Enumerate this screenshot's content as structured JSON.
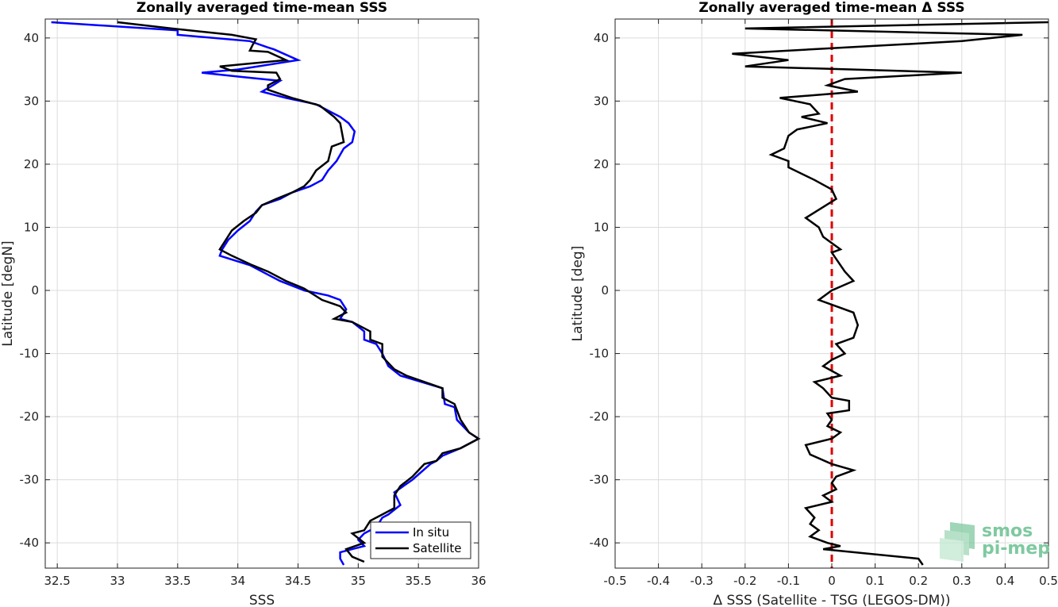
{
  "chart_data": [
    {
      "type": "line",
      "title": "Zonally averaged time-mean SSS",
      "xlabel": "SSS",
      "ylabel": "Latitude [degN]",
      "xlim": [
        32.4,
        36
      ],
      "ylim": [
        -44,
        43
      ],
      "xticks": [
        "32.5",
        "33",
        "33.5",
        "34",
        "34.5",
        "35",
        "35.5",
        "36"
      ],
      "yticks": [
        "40",
        "30",
        "20",
        "10",
        "0",
        "-10",
        "-20",
        "-30",
        "-40"
      ],
      "grid": true,
      "legend": {
        "placement": "bottom-right",
        "entries": [
          "In situ",
          "Satellite"
        ]
      },
      "series": [
        {
          "name": "In situ",
          "color": "#0000ff",
          "points": [
            [
              32.45,
              42.5
            ],
            [
              33.5,
              41.2
            ],
            [
              33.5,
              40.5
            ],
            [
              34.1,
              39.5
            ],
            [
              34.25,
              38.5
            ],
            [
              34.3,
              38.2
            ],
            [
              34.5,
              36.5
            ],
            [
              34.0,
              35.0
            ],
            [
              33.7,
              34.5
            ],
            [
              34.05,
              33.8
            ],
            [
              34.35,
              33.2
            ],
            [
              34.3,
              32.6
            ],
            [
              34.2,
              31.5
            ],
            [
              34.4,
              30.5
            ],
            [
              34.65,
              29.5
            ],
            [
              34.85,
              27.5
            ],
            [
              34.92,
              26.5
            ],
            [
              34.97,
              25.2
            ],
            [
              34.95,
              23.5
            ],
            [
              34.88,
              22.5
            ],
            [
              34.82,
              20.5
            ],
            [
              34.75,
              19.0
            ],
            [
              34.7,
              17.5
            ],
            [
              34.6,
              16.5
            ],
            [
              34.45,
              15.5
            ],
            [
              34.35,
              14.5
            ],
            [
              34.2,
              13.5
            ],
            [
              34.15,
              12.5
            ],
            [
              34.1,
              11.0
            ],
            [
              34.0,
              9.5
            ],
            [
              33.92,
              8.0
            ],
            [
              33.87,
              6.5
            ],
            [
              33.85,
              5.5
            ],
            [
              34.1,
              4.0
            ],
            [
              34.2,
              3.0
            ],
            [
              34.35,
              1.5
            ],
            [
              34.55,
              0.0
            ],
            [
              34.75,
              -0.8
            ],
            [
              34.85,
              -1.5
            ],
            [
              34.9,
              -3.0
            ],
            [
              34.85,
              -4.5
            ],
            [
              34.95,
              -5.0
            ],
            [
              35.05,
              -6.5
            ],
            [
              35.05,
              -7.8
            ],
            [
              35.15,
              -8.5
            ],
            [
              35.2,
              -10.0
            ],
            [
              35.25,
              -12.0
            ],
            [
              35.35,
              -13.5
            ],
            [
              35.7,
              -15.5
            ],
            [
              35.72,
              -18.0
            ],
            [
              35.8,
              -18.5
            ],
            [
              35.82,
              -20.5
            ],
            [
              35.92,
              -22.5
            ],
            [
              36.0,
              -23.5
            ],
            [
              35.85,
              -25.0
            ],
            [
              35.7,
              -26.2
            ],
            [
              35.65,
              -27.0
            ],
            [
              35.6,
              -27.5
            ],
            [
              35.45,
              -30.0
            ],
            [
              35.3,
              -32.0
            ],
            [
              35.35,
              -34.0
            ],
            [
              35.25,
              -35.5
            ],
            [
              35.2,
              -36.0
            ],
            [
              35.15,
              -37.5
            ],
            [
              35.05,
              -38.5
            ],
            [
              35.0,
              -39.5
            ],
            [
              35.05,
              -40.5
            ],
            [
              34.95,
              -41.0
            ],
            [
              34.85,
              -41.5
            ],
            [
              34.85,
              -42.5
            ],
            [
              34.88,
              -43.5
            ]
          ]
        },
        {
          "name": "Satellite",
          "color": "#000000",
          "points": [
            [
              33.0,
              42.5
            ],
            [
              33.45,
              41.5
            ],
            [
              33.95,
              40.5
            ],
            [
              34.15,
              39.8
            ],
            [
              34.12,
              38.8
            ],
            [
              34.1,
              38.0
            ],
            [
              34.25,
              37.8
            ],
            [
              34.4,
              36.5
            ],
            [
              33.85,
              35.5
            ],
            [
              33.95,
              34.8
            ],
            [
              34.32,
              34.5
            ],
            [
              34.35,
              33.5
            ],
            [
              34.25,
              32.5
            ],
            [
              34.25,
              31.8
            ],
            [
              34.45,
              30.5
            ],
            [
              34.68,
              29.3
            ],
            [
              34.8,
              27.5
            ],
            [
              34.85,
              26.5
            ],
            [
              34.88,
              23.5
            ],
            [
              34.78,
              22.8
            ],
            [
              34.75,
              20.5
            ],
            [
              34.65,
              19.0
            ],
            [
              34.6,
              17.5
            ],
            [
              34.55,
              16.5
            ],
            [
              34.45,
              15.5
            ],
            [
              34.32,
              14.5
            ],
            [
              34.2,
              13.5
            ],
            [
              34.15,
              12.3
            ],
            [
              34.05,
              11.0
            ],
            [
              33.95,
              9.5
            ],
            [
              33.9,
              8.0
            ],
            [
              33.85,
              6.5
            ],
            [
              33.95,
              5.5
            ],
            [
              34.12,
              4.0
            ],
            [
              34.25,
              3.0
            ],
            [
              34.4,
              1.5
            ],
            [
              34.55,
              0.3
            ],
            [
              34.7,
              -1.5
            ],
            [
              34.85,
              -2.5
            ],
            [
              34.9,
              -3.5
            ],
            [
              34.8,
              -4.5
            ],
            [
              34.95,
              -5.0
            ],
            [
              35.1,
              -6.5
            ],
            [
              35.1,
              -7.8
            ],
            [
              35.2,
              -8.5
            ],
            [
              35.2,
              -10.5
            ],
            [
              35.3,
              -12.5
            ],
            [
              35.4,
              -13.5
            ],
            [
              35.7,
              -15.5
            ],
            [
              35.7,
              -17.0
            ],
            [
              35.8,
              -18.0
            ],
            [
              35.85,
              -20.5
            ],
            [
              35.92,
              -22.5
            ],
            [
              36.0,
              -23.5
            ],
            [
              35.85,
              -25.0
            ],
            [
              35.7,
              -25.8
            ],
            [
              35.65,
              -27.0
            ],
            [
              35.55,
              -27.5
            ],
            [
              35.45,
              -29.5
            ],
            [
              35.35,
              -31.0
            ],
            [
              35.3,
              -32.5
            ],
            [
              35.3,
              -34.5
            ],
            [
              35.2,
              -35.5
            ],
            [
              35.1,
              -36.5
            ],
            [
              35.05,
              -38.0
            ],
            [
              34.95,
              -38.5
            ],
            [
              35.05,
              -40.0
            ],
            [
              34.9,
              -41.0
            ],
            [
              34.95,
              -42.2
            ],
            [
              35.05,
              -43.0
            ]
          ]
        }
      ]
    },
    {
      "type": "line",
      "title": "Zonally averaged time-mean Δ SSS",
      "xlabel": "Δ SSS (Satellite - TSG (LEGOS-DM))",
      "ylabel": "Latitude [deg]",
      "xlim": [
        -0.5,
        0.5
      ],
      "ylim": [
        -44,
        43
      ],
      "xticks": [
        "-0.5",
        "-0.4",
        "-0.3",
        "-0.2",
        "-0.1",
        "0",
        "0.1",
        "0.2",
        "0.3",
        "0.4",
        "0.5"
      ],
      "yticks": [
        "40",
        "30",
        "20",
        "10",
        "0",
        "-10",
        "-20",
        "-30",
        "-40"
      ],
      "grid": true,
      "reference_line": {
        "x": 0,
        "color": "#dd0000",
        "style": "dashed"
      },
      "series": [
        {
          "color": "#000000",
          "points": [
            [
              0.5,
              42.5
            ],
            [
              -0.2,
              41.5
            ],
            [
              0.44,
              40.5
            ],
            [
              0.3,
              39.5
            ],
            [
              -0.23,
              37.5
            ],
            [
              -0.1,
              36.5
            ],
            [
              -0.2,
              35.5
            ],
            [
              0.3,
              34.5
            ],
            [
              0.03,
              33.5
            ],
            [
              -0.01,
              32.5
            ],
            [
              0.06,
              31.5
            ],
            [
              -0.12,
              30.5
            ],
            [
              -0.05,
              29.5
            ],
            [
              -0.03,
              28.0
            ],
            [
              -0.07,
              27.5
            ],
            [
              -0.01,
              26.5
            ],
            [
              -0.08,
              25.5
            ],
            [
              -0.1,
              24.5
            ],
            [
              -0.11,
              22.5
            ],
            [
              -0.14,
              21.5
            ],
            [
              -0.1,
              20.5
            ],
            [
              -0.1,
              19.5
            ],
            [
              -0.04,
              17.5
            ],
            [
              0.0,
              16.0
            ],
            [
              0.01,
              14.5
            ],
            [
              -0.06,
              11.5
            ],
            [
              -0.03,
              10.0
            ],
            [
              -0.02,
              8.5
            ],
            [
              0.0,
              7.5
            ],
            [
              0.02,
              6.5
            ],
            [
              0.0,
              6.0
            ],
            [
              0.01,
              5.0
            ],
            [
              0.03,
              3.0
            ],
            [
              0.05,
              1.5
            ],
            [
              0.0,
              0.0
            ],
            [
              -0.03,
              -1.5
            ],
            [
              0.05,
              -3.5
            ],
            [
              0.06,
              -5.5
            ],
            [
              0.05,
              -7.5
            ],
            [
              0.01,
              -8.5
            ],
            [
              0.03,
              -10.0
            ],
            [
              0.0,
              -11.0
            ],
            [
              -0.02,
              -12.0
            ],
            [
              0.02,
              -13.5
            ],
            [
              -0.04,
              -14.5
            ],
            [
              -0.02,
              -15.5
            ],
            [
              0.0,
              -17.0
            ],
            [
              0.04,
              -17.5
            ],
            [
              0.04,
              -19.0
            ],
            [
              -0.01,
              -19.5
            ],
            [
              0.0,
              -20.5
            ],
            [
              -0.01,
              -21.5
            ],
            [
              0.02,
              -22.5
            ],
            [
              0.0,
              -23.5
            ],
            [
              -0.06,
              -24.5
            ],
            [
              -0.05,
              -26.0
            ],
            [
              0.0,
              -27.5
            ],
            [
              0.05,
              -28.5
            ],
            [
              0.01,
              -29.5
            ],
            [
              0.0,
              -30.5
            ],
            [
              0.01,
              -31.5
            ],
            [
              -0.02,
              -32.5
            ],
            [
              0.0,
              -33.5
            ],
            [
              -0.06,
              -34.5
            ],
            [
              -0.04,
              -36.0
            ],
            [
              -0.05,
              -37.0
            ],
            [
              -0.03,
              -38.0
            ],
            [
              -0.05,
              -39.0
            ],
            [
              -0.01,
              -40.0
            ],
            [
              0.02,
              -40.5
            ],
            [
              -0.02,
              -41.0
            ],
            [
              0.2,
              -42.5
            ],
            [
              0.21,
              -43.5
            ]
          ]
        }
      ]
    }
  ],
  "logo": {
    "line1": "smos",
    "line2": "pi-mep"
  }
}
